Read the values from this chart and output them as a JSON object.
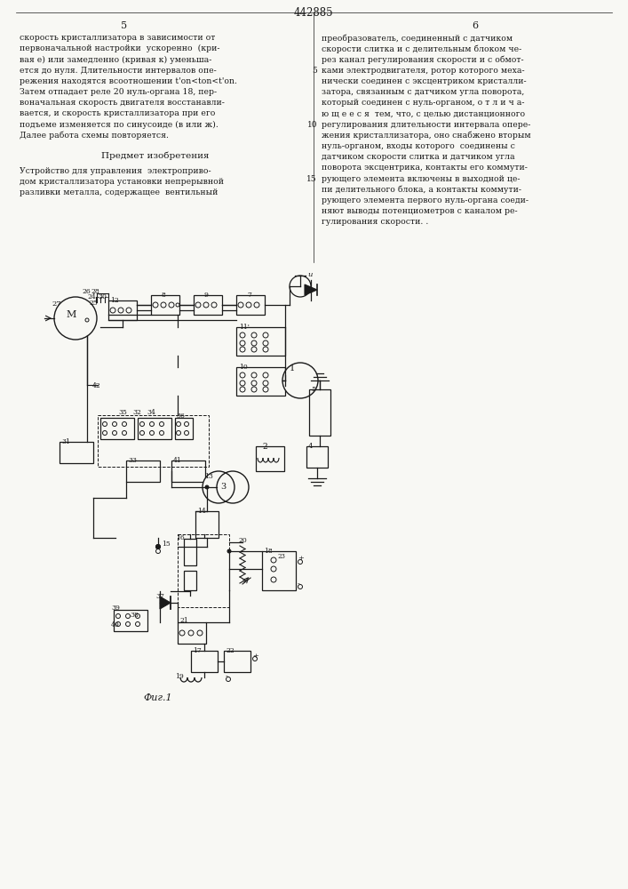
{
  "page_number": "442885",
  "col_left": "5",
  "col_right": "6",
  "bg_color": "#f8f8f4",
  "text_color": "#1a1a1a",
  "line_color": "#1a1a1a",
  "fig_caption": "Фиг.1",
  "text_left_col": [
    "скорость кристаллизатора в зависимости от",
    "первоначальной настройки  ускоренно  (кри-",
    "вая е) или замедленно (кривая к) уменьша-",
    "ется до нуля. Длительности интервалов опе-",
    "режения находятся всоотношении t'on<ton<t'on.",
    "Затем отпадает реле 20 нуль-органа 18, пер-",
    "воначальная скорость двигателя восстанавли-",
    "вается, и скорость кристаллизатора при его",
    "подъеме изменяется по синусоиде (в или ж).",
    "Далее работа схемы повторяется."
  ],
  "text_right_col": [
    "преобразователь, соединенный с датчиком",
    "скорости слитка и с делительным блоком че-",
    "рез канал регулирования скорости и с обмот-",
    "ками электродвигателя, ротор которого меха-",
    "нически соединен с эксцентриком кристалли-",
    "затора, связанным с датчиком угла поворота,",
    "который соединен с нуль-органом, о т л и ч а-",
    "ю щ е е с я  тем, что, с целью дистанционного",
    "регулирования длительности интервала опере-",
    "жения кристаллизатора, оно снабжено вторым",
    "нуль-органом, входы которого  соединены с",
    "датчиком скорости слитка и датчиком угла",
    "поворота эксцентрика, контакты его коммути-",
    "рующего элемента включены в выходной це-",
    "пи делительного блока, а контакты коммути-",
    "рующего элемента первого нуль-органа соеди-",
    "няют выводы потенциометров с каналом ре-",
    "гулирования скорости. ."
  ],
  "subject_header": "Предмет изобретения",
  "subject_text": [
    "Устройство для управления  электроприво-",
    "дом кристаллизатора установки непрерывной",
    "разливки металла, содержащее  вентильный"
  ]
}
